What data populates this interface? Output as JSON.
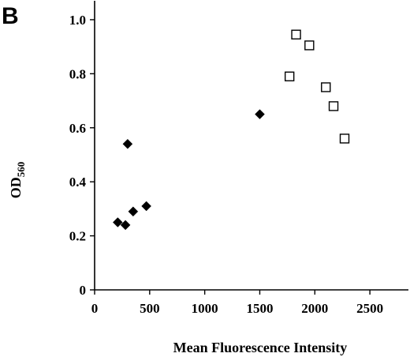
{
  "panel_label": "B",
  "chart_data": {
    "type": "scatter",
    "title": "",
    "xlabel": "Mean Fluorescence Intensity",
    "ylabel": "OD",
    "ylabel_subscript": "560",
    "xlim": [
      0,
      2850
    ],
    "ylim": [
      0,
      1.07
    ],
    "x_ticks": [
      0,
      500,
      1000,
      1500,
      2000,
      2500
    ],
    "x_tick_labels": [
      "0",
      "500",
      "1000",
      "1500",
      "2000",
      "2500"
    ],
    "y_ticks": [
      0,
      0.2,
      0.4,
      0.6,
      0.8,
      1.0
    ],
    "y_tick_labels": [
      "0",
      "0.2",
      "0.4",
      "0.6",
      "0.8",
      "1.0"
    ],
    "grid": false,
    "legend": "none",
    "series": [
      {
        "marker": "filled-diamond",
        "color": "#000000",
        "points": [
          {
            "x": 210,
            "y": 0.25
          },
          {
            "x": 280,
            "y": 0.24
          },
          {
            "x": 300,
            "y": 0.54
          },
          {
            "x": 350,
            "y": 0.29
          },
          {
            "x": 470,
            "y": 0.31
          },
          {
            "x": 1500,
            "y": 0.65
          }
        ]
      },
      {
        "marker": "open-square",
        "color": "#000000",
        "points": [
          {
            "x": 1770,
            "y": 0.79
          },
          {
            "x": 1830,
            "y": 0.945
          },
          {
            "x": 1950,
            "y": 0.905
          },
          {
            "x": 2100,
            "y": 0.75
          },
          {
            "x": 2170,
            "y": 0.68
          },
          {
            "x": 2270,
            "y": 0.56
          }
        ]
      }
    ]
  }
}
